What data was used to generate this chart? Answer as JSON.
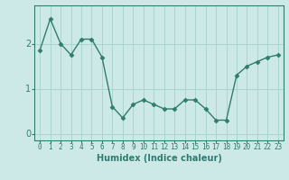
{
  "x": [
    0,
    1,
    2,
    3,
    4,
    5,
    6,
    7,
    8,
    9,
    10,
    11,
    12,
    13,
    14,
    15,
    16,
    17,
    18,
    19,
    20,
    21,
    22,
    23
  ],
  "y": [
    1.85,
    2.55,
    2.0,
    1.75,
    2.1,
    2.1,
    1.7,
    0.6,
    0.35,
    0.65,
    0.75,
    0.65,
    0.55,
    0.55,
    0.75,
    0.75,
    0.55,
    0.3,
    0.3,
    1.3,
    1.5,
    1.6,
    1.7,
    1.75
  ],
  "line_color": "#2e7d6e",
  "marker": "D",
  "marker_size": 2.5,
  "xlabel": "Humidex (Indice chaleur)",
  "xlim": [
    -0.5,
    23.5
  ],
  "ylim": [
    -0.15,
    2.85
  ],
  "yticks": [
    0,
    1,
    2
  ],
  "xtick_labels": [
    "0",
    "1",
    "2",
    "3",
    "4",
    "5",
    "6",
    "7",
    "8",
    "9",
    "10",
    "11",
    "12",
    "13",
    "14",
    "15",
    "16",
    "17",
    "18",
    "19",
    "20",
    "21",
    "22",
    "23"
  ],
  "bg_color": "#cce9e8",
  "grid_color": "#aad4d2",
  "fig_bg": "#cce9e8",
  "tick_color": "#2e7d6e",
  "label_fontsize": 7,
  "tick_fontsize": 5.5
}
